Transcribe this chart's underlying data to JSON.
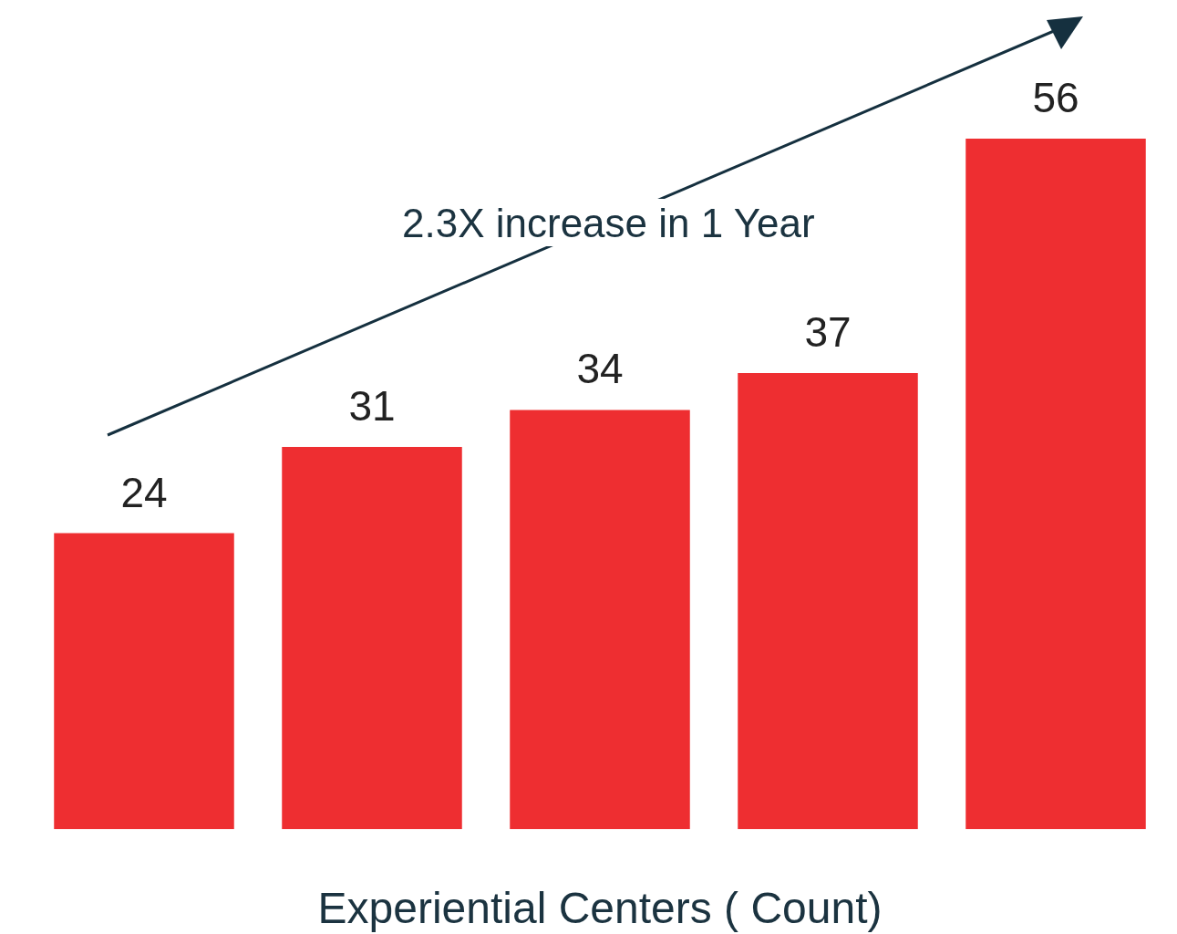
{
  "chart_data": {
    "type": "bar",
    "xlabel": "Experiential Centers ( Count)",
    "categories": [
      null,
      null,
      null,
      null,
      null
    ],
    "values": [
      24,
      31,
      34,
      37,
      56
    ],
    "color": "#ee2e31",
    "tick_labels": false,
    "data_labels": true,
    "annotations": [
      "2.3X increase in 1 Year"
    ]
  }
}
